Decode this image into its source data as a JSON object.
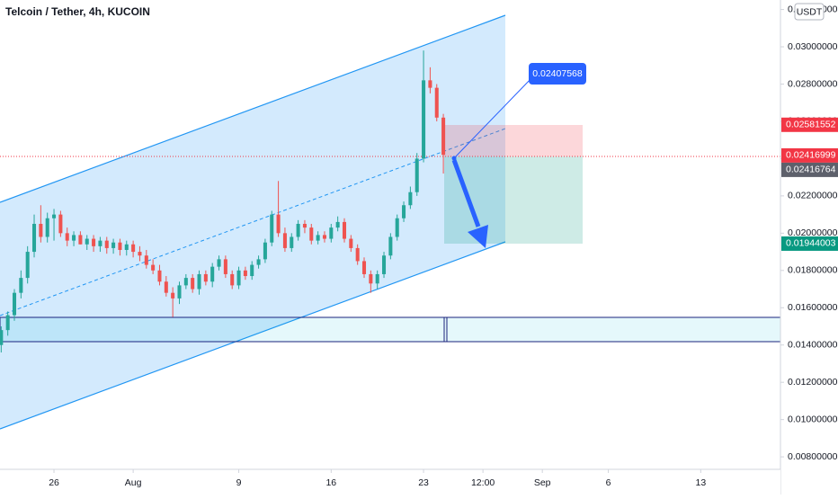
{
  "chart_data": {
    "type": "candlestick",
    "title": "Telcoin / Tether, 4h, KUCOIN",
    "currency": "USDT",
    "up_color": "#26a69a",
    "down_color": "#ef5350",
    "x": [
      22,
      22.5,
      23,
      23.5,
      24,
      24.5,
      25,
      25.5,
      26,
      26.5,
      27,
      27.5,
      28,
      28.5,
      29,
      29.5,
      30,
      30.5,
      31,
      31.5,
      32,
      32.5,
      33,
      33.5,
      34,
      34.5,
      35,
      35.5,
      36,
      36.5,
      37,
      37.5,
      38,
      38.5,
      39,
      39.5,
      40,
      40.5,
      41,
      41.5,
      42,
      42.5,
      43,
      43.5,
      44,
      44.5,
      45,
      45.5,
      46,
      46.5,
      47,
      47.5,
      48,
      48.5,
      49,
      49.5,
      50,
      50.5,
      51,
      51.5,
      52,
      52.5,
      53,
      53.5,
      54,
      54.5,
      55,
      55.5
    ],
    "open": [
      0.014,
      0.0148,
      0.0156,
      0.0168,
      0.0176,
      0.019,
      0.0205,
      0.0198,
      0.0208,
      0.021,
      0.02,
      0.0196,
      0.0199,
      0.0194,
      0.0197,
      0.0193,
      0.0196,
      0.0192,
      0.0195,
      0.0191,
      0.0194,
      0.019,
      0.0188,
      0.0183,
      0.018,
      0.0174,
      0.0168,
      0.0165,
      0.0172,
      0.0176,
      0.017,
      0.0178,
      0.0174,
      0.0182,
      0.0186,
      0.0178,
      0.0172,
      0.018,
      0.0177,
      0.0183,
      0.0186,
      0.0195,
      0.021,
      0.02,
      0.0192,
      0.0198,
      0.0205,
      0.0203,
      0.0196,
      0.0199,
      0.0197,
      0.0203,
      0.0206,
      0.0197,
      0.0192,
      0.0185,
      0.0178,
      0.0173,
      0.0178,
      0.0188,
      0.0198,
      0.0208,
      0.0215,
      0.0222,
      0.024,
      0.0282,
      0.0278,
      0.0262
    ],
    "high": [
      0.015,
      0.0158,
      0.017,
      0.018,
      0.0193,
      0.021,
      0.0215,
      0.0211,
      0.0213,
      0.0212,
      0.0203,
      0.0201,
      0.0201,
      0.0199,
      0.0199,
      0.0198,
      0.0198,
      0.0197,
      0.0197,
      0.0196,
      0.0196,
      0.0193,
      0.0191,
      0.0186,
      0.0183,
      0.0177,
      0.0171,
      0.0174,
      0.0178,
      0.0178,
      0.018,
      0.018,
      0.0184,
      0.0188,
      0.0188,
      0.018,
      0.0182,
      0.0182,
      0.0185,
      0.0188,
      0.0197,
      0.0212,
      0.0228,
      0.0203,
      0.02,
      0.0207,
      0.0207,
      0.0205,
      0.0201,
      0.0201,
      0.0205,
      0.0209,
      0.0208,
      0.0199,
      0.0194,
      0.0187,
      0.018,
      0.018,
      0.019,
      0.02,
      0.021,
      0.0217,
      0.0225,
      0.0243,
      0.0298,
      0.0289,
      0.028,
      0.0264
    ],
    "low": [
      0.0136,
      0.0145,
      0.0153,
      0.0165,
      0.0173,
      0.0187,
      0.0195,
      0.0195,
      0.0196,
      0.0198,
      0.0193,
      0.0193,
      0.0194,
      0.0191,
      0.019,
      0.019,
      0.0189,
      0.0189,
      0.0188,
      0.0188,
      0.0187,
      0.0185,
      0.0181,
      0.0178,
      0.0172,
      0.0166,
      0.0155,
      0.0162,
      0.017,
      0.0168,
      0.0167,
      0.0172,
      0.0171,
      0.018,
      0.0176,
      0.017,
      0.017,
      0.0175,
      0.0175,
      0.0181,
      0.0184,
      0.0193,
      0.0198,
      0.019,
      0.019,
      0.0196,
      0.02,
      0.0194,
      0.0194,
      0.0195,
      0.0195,
      0.0201,
      0.0195,
      0.019,
      0.0183,
      0.0176,
      0.0168,
      0.017,
      0.0176,
      0.0186,
      0.0196,
      0.0206,
      0.0213,
      0.022,
      0.0238,
      0.0275,
      0.026,
      0.0232
    ],
    "close": [
      0.0148,
      0.0156,
      0.0168,
      0.0176,
      0.019,
      0.0205,
      0.0198,
      0.0208,
      0.021,
      0.02,
      0.0196,
      0.0199,
      0.0194,
      0.0197,
      0.0193,
      0.0196,
      0.0192,
      0.0195,
      0.0191,
      0.0194,
      0.019,
      0.0188,
      0.0183,
      0.018,
      0.0174,
      0.0168,
      0.0165,
      0.0172,
      0.0176,
      0.017,
      0.0178,
      0.0174,
      0.0182,
      0.0186,
      0.0178,
      0.0172,
      0.018,
      0.0177,
      0.0183,
      0.0186,
      0.0195,
      0.021,
      0.02,
      0.0192,
      0.0198,
      0.0205,
      0.0203,
      0.0196,
      0.0199,
      0.0197,
      0.0203,
      0.0206,
      0.0197,
      0.0192,
      0.0185,
      0.0178,
      0.0173,
      0.0178,
      0.0188,
      0.0198,
      0.0208,
      0.0215,
      0.0222,
      0.024,
      0.0282,
      0.0278,
      0.0262,
      0.0242
    ],
    "xlim": [
      21.91,
      81.04
    ],
    "ylim": [
      0.00733,
      0.03251
    ],
    "xticks": [
      {
        "value": 26,
        "label": "26"
      },
      {
        "value": 32,
        "label": "Aug"
      },
      {
        "value": 40,
        "label": "9"
      },
      {
        "value": 47,
        "label": "16"
      },
      {
        "value": 54,
        "label": "23"
      },
      {
        "value": 58.5,
        "label": "12:00"
      },
      {
        "value": 63,
        "label": "Sep"
      },
      {
        "value": 68,
        "label": "6"
      },
      {
        "value": 75,
        "label": "13"
      }
    ],
    "yticks": [
      {
        "value": 0.008,
        "label": "0.00800000"
      },
      {
        "value": 0.01,
        "label": "0.01000000"
      },
      {
        "value": 0.012,
        "label": "0.01200000"
      },
      {
        "value": 0.014,
        "label": "0.01400000"
      },
      {
        "value": 0.016,
        "label": "0.01600000"
      },
      {
        "value": 0.018,
        "label": "0.01800000"
      },
      {
        "value": 0.02,
        "label": "0.02000000"
      },
      {
        "value": 0.022,
        "label": "0.02200000"
      },
      {
        "value": 0.024,
        "label": "0.02400000"
      },
      {
        "value": 0.026,
        "label": "0.02600000"
      },
      {
        "value": 0.028,
        "label": "0.02800000"
      },
      {
        "value": 0.03,
        "label": "0.03000000"
      },
      {
        "value": 0.032,
        "label": "0.03200000"
      }
    ],
    "price_labels": [
      {
        "value": 0.02581552,
        "label": "0.02581552",
        "color": "#f23645"
      },
      {
        "value": 0.02416999,
        "label": "0.02416999",
        "color": "#f23645"
      },
      {
        "value": 0.02416764,
        "label": "0.02416764",
        "color": "#5d606b"
      },
      {
        "value": 0.01944003,
        "label": "0.01944003",
        "color": "#089981"
      }
    ],
    "callout": {
      "value": 0.02407568,
      "label": "0.02407568",
      "color": "#2962ff"
    }
  }
}
